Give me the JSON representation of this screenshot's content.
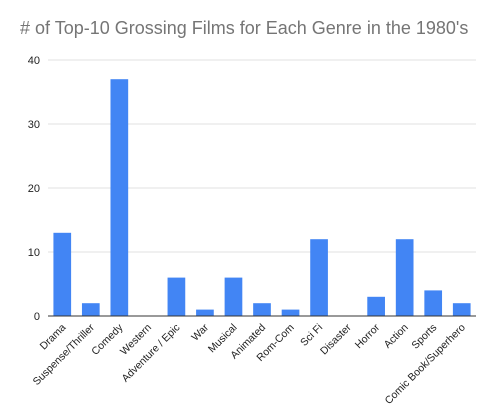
{
  "chart_data": {
    "type": "bar",
    "title": "# of Top-10 Grossing Films for Each Genre in the 1980's",
    "xlabel": "",
    "ylabel": "",
    "categories": [
      "Drama",
      "Suspense/Thriller",
      "Comedy",
      "Western",
      "Adventure / Epic",
      "War",
      "Musical",
      "Animated",
      "Rom-Com",
      "Sci Fi",
      "Disaster",
      "Horror",
      "Action",
      "Sports",
      "Comic Book/Superhero"
    ],
    "values": [
      13,
      2,
      37,
      0,
      6,
      1,
      6,
      2,
      1,
      12,
      0,
      3,
      12,
      4,
      2
    ],
    "ylim": [
      0,
      40
    ],
    "yticks": [
      0,
      10,
      20,
      30,
      40
    ],
    "grid": true,
    "legend": "none",
    "bar_color": "#4285f4",
    "grid_color": "#e0e0e0",
    "axis_color": "#333333"
  }
}
